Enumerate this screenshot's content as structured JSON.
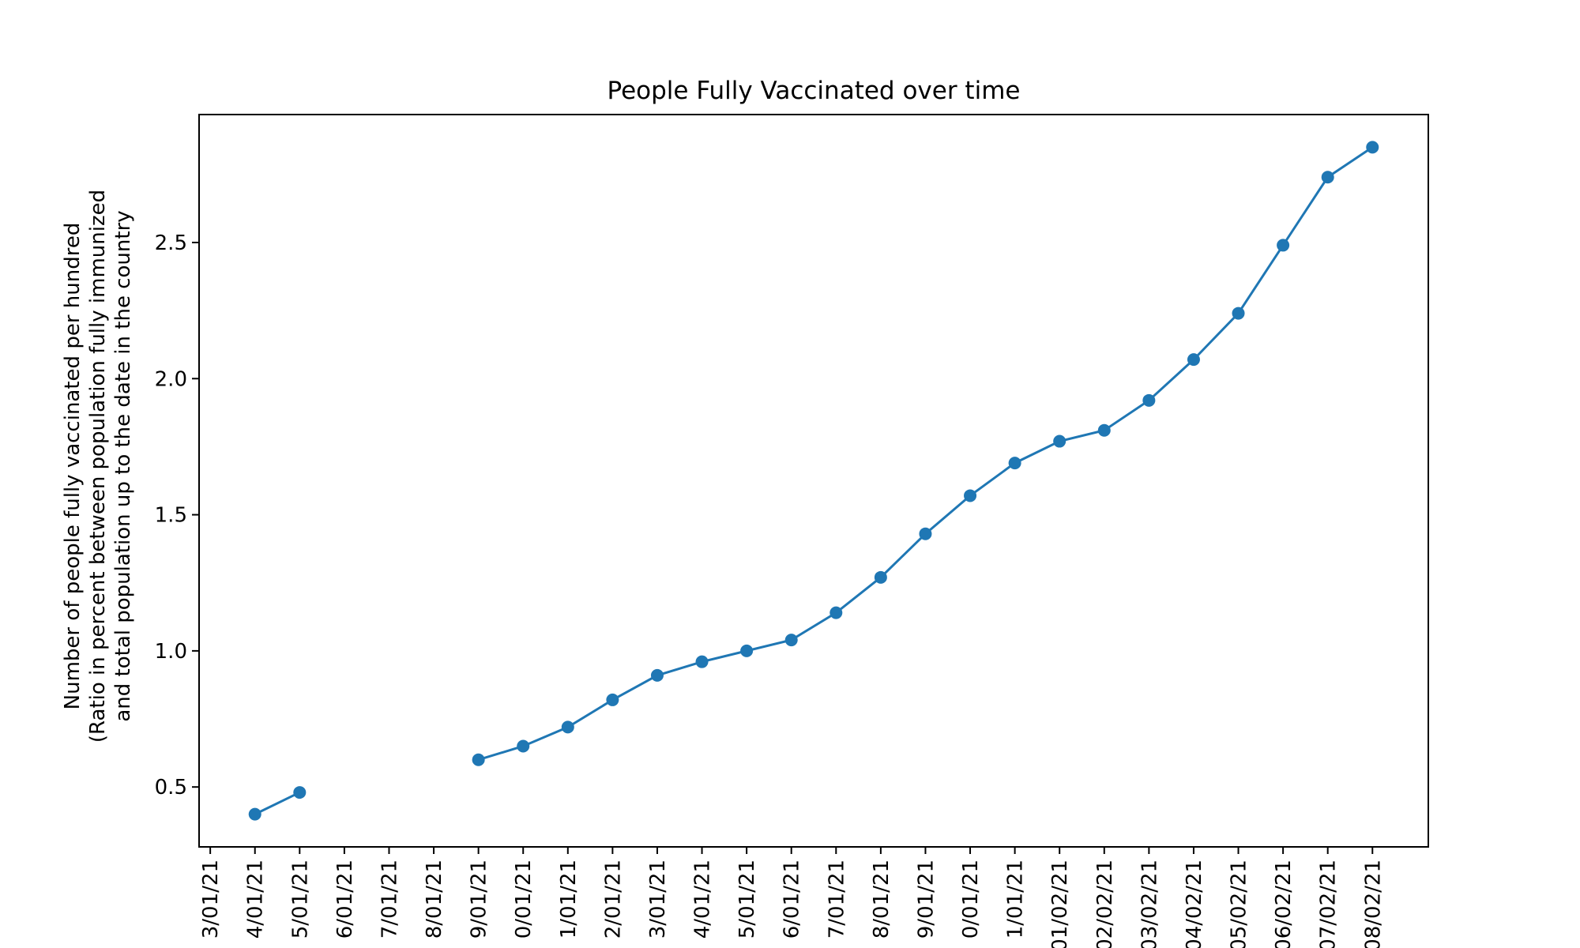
{
  "chart_data": {
    "type": "line",
    "title": "People Fully Vaccinated over time",
    "xlabel": "",
    "ylabel": [
      "Number of people fully vaccinated per hundred",
      "(Ratio in percent between population fully immunized",
      "and total population up to the date in the country"
    ],
    "x_tick_labels": [
      "3/01/21",
      "4/01/21",
      "5/01/21",
      "6/01/21",
      "7/01/21",
      "8/01/21",
      "9/01/21",
      "0/01/21",
      "1/01/21",
      "2/01/21",
      "3/01/21",
      "4/01/21",
      "5/01/21",
      "6/01/21",
      "7/01/21",
      "8/01/21",
      "9/01/21",
      "0/01/21",
      "1/01/21",
      "01/02/21",
      "02/02/21",
      "03/02/21",
      "04/02/21",
      "05/02/21",
      "06/02/21",
      "07/02/21",
      "08/02/21"
    ],
    "y_ticks": [
      "0.5",
      "1.0",
      "1.5",
      "2.0",
      "2.5"
    ],
    "y_tick_values": [
      0.5,
      1.0,
      1.5,
      2.0,
      2.5
    ],
    "ylim": [
      0.28,
      2.97
    ],
    "xlim": [
      -0.25,
      27.25
    ],
    "grid": false,
    "legend": false,
    "color": "#1f77b4",
    "values": [
      null,
      0.4,
      0.48,
      null,
      null,
      null,
      0.6,
      0.65,
      0.72,
      0.82,
      0.91,
      0.96,
      1.0,
      1.04,
      1.14,
      1.27,
      1.43,
      1.57,
      1.69,
      1.77,
      1.81,
      1.92,
      2.07,
      2.24,
      2.49,
      2.74,
      2.85
    ]
  }
}
